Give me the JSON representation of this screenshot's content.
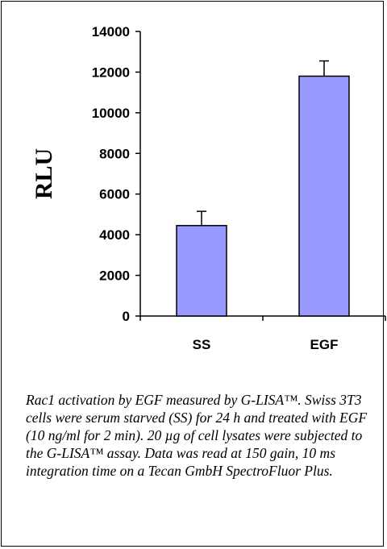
{
  "chart_data": {
    "type": "bar",
    "categories": [
      "SS",
      "EGF"
    ],
    "values": [
      4450,
      11800
    ],
    "errors": [
      700,
      750
    ],
    "ylabel": "RLU",
    "xlabel": "",
    "title": "",
    "ylim": [
      0,
      14000
    ],
    "yticks": [
      "0",
      "2000",
      "4000",
      "6000",
      "8000",
      "10000",
      "12000",
      "14000"
    ],
    "grid": false,
    "legend": "none",
    "bar_color": "#9999ff",
    "bar_edge_color": "#000000"
  },
  "caption": "Rac1 activation by EGF measured by G-LISA™. Swiss 3T3 cells were serum starved (SS) for 24 h and treated with EGF (10 ng/ml for 2 min). 20 µg of cell lysates were subjected to the G-LISA™ assay. Data was read at 150 gain, 10 ms integration time on a Tecan GmbH SpectroFluor Plus."
}
